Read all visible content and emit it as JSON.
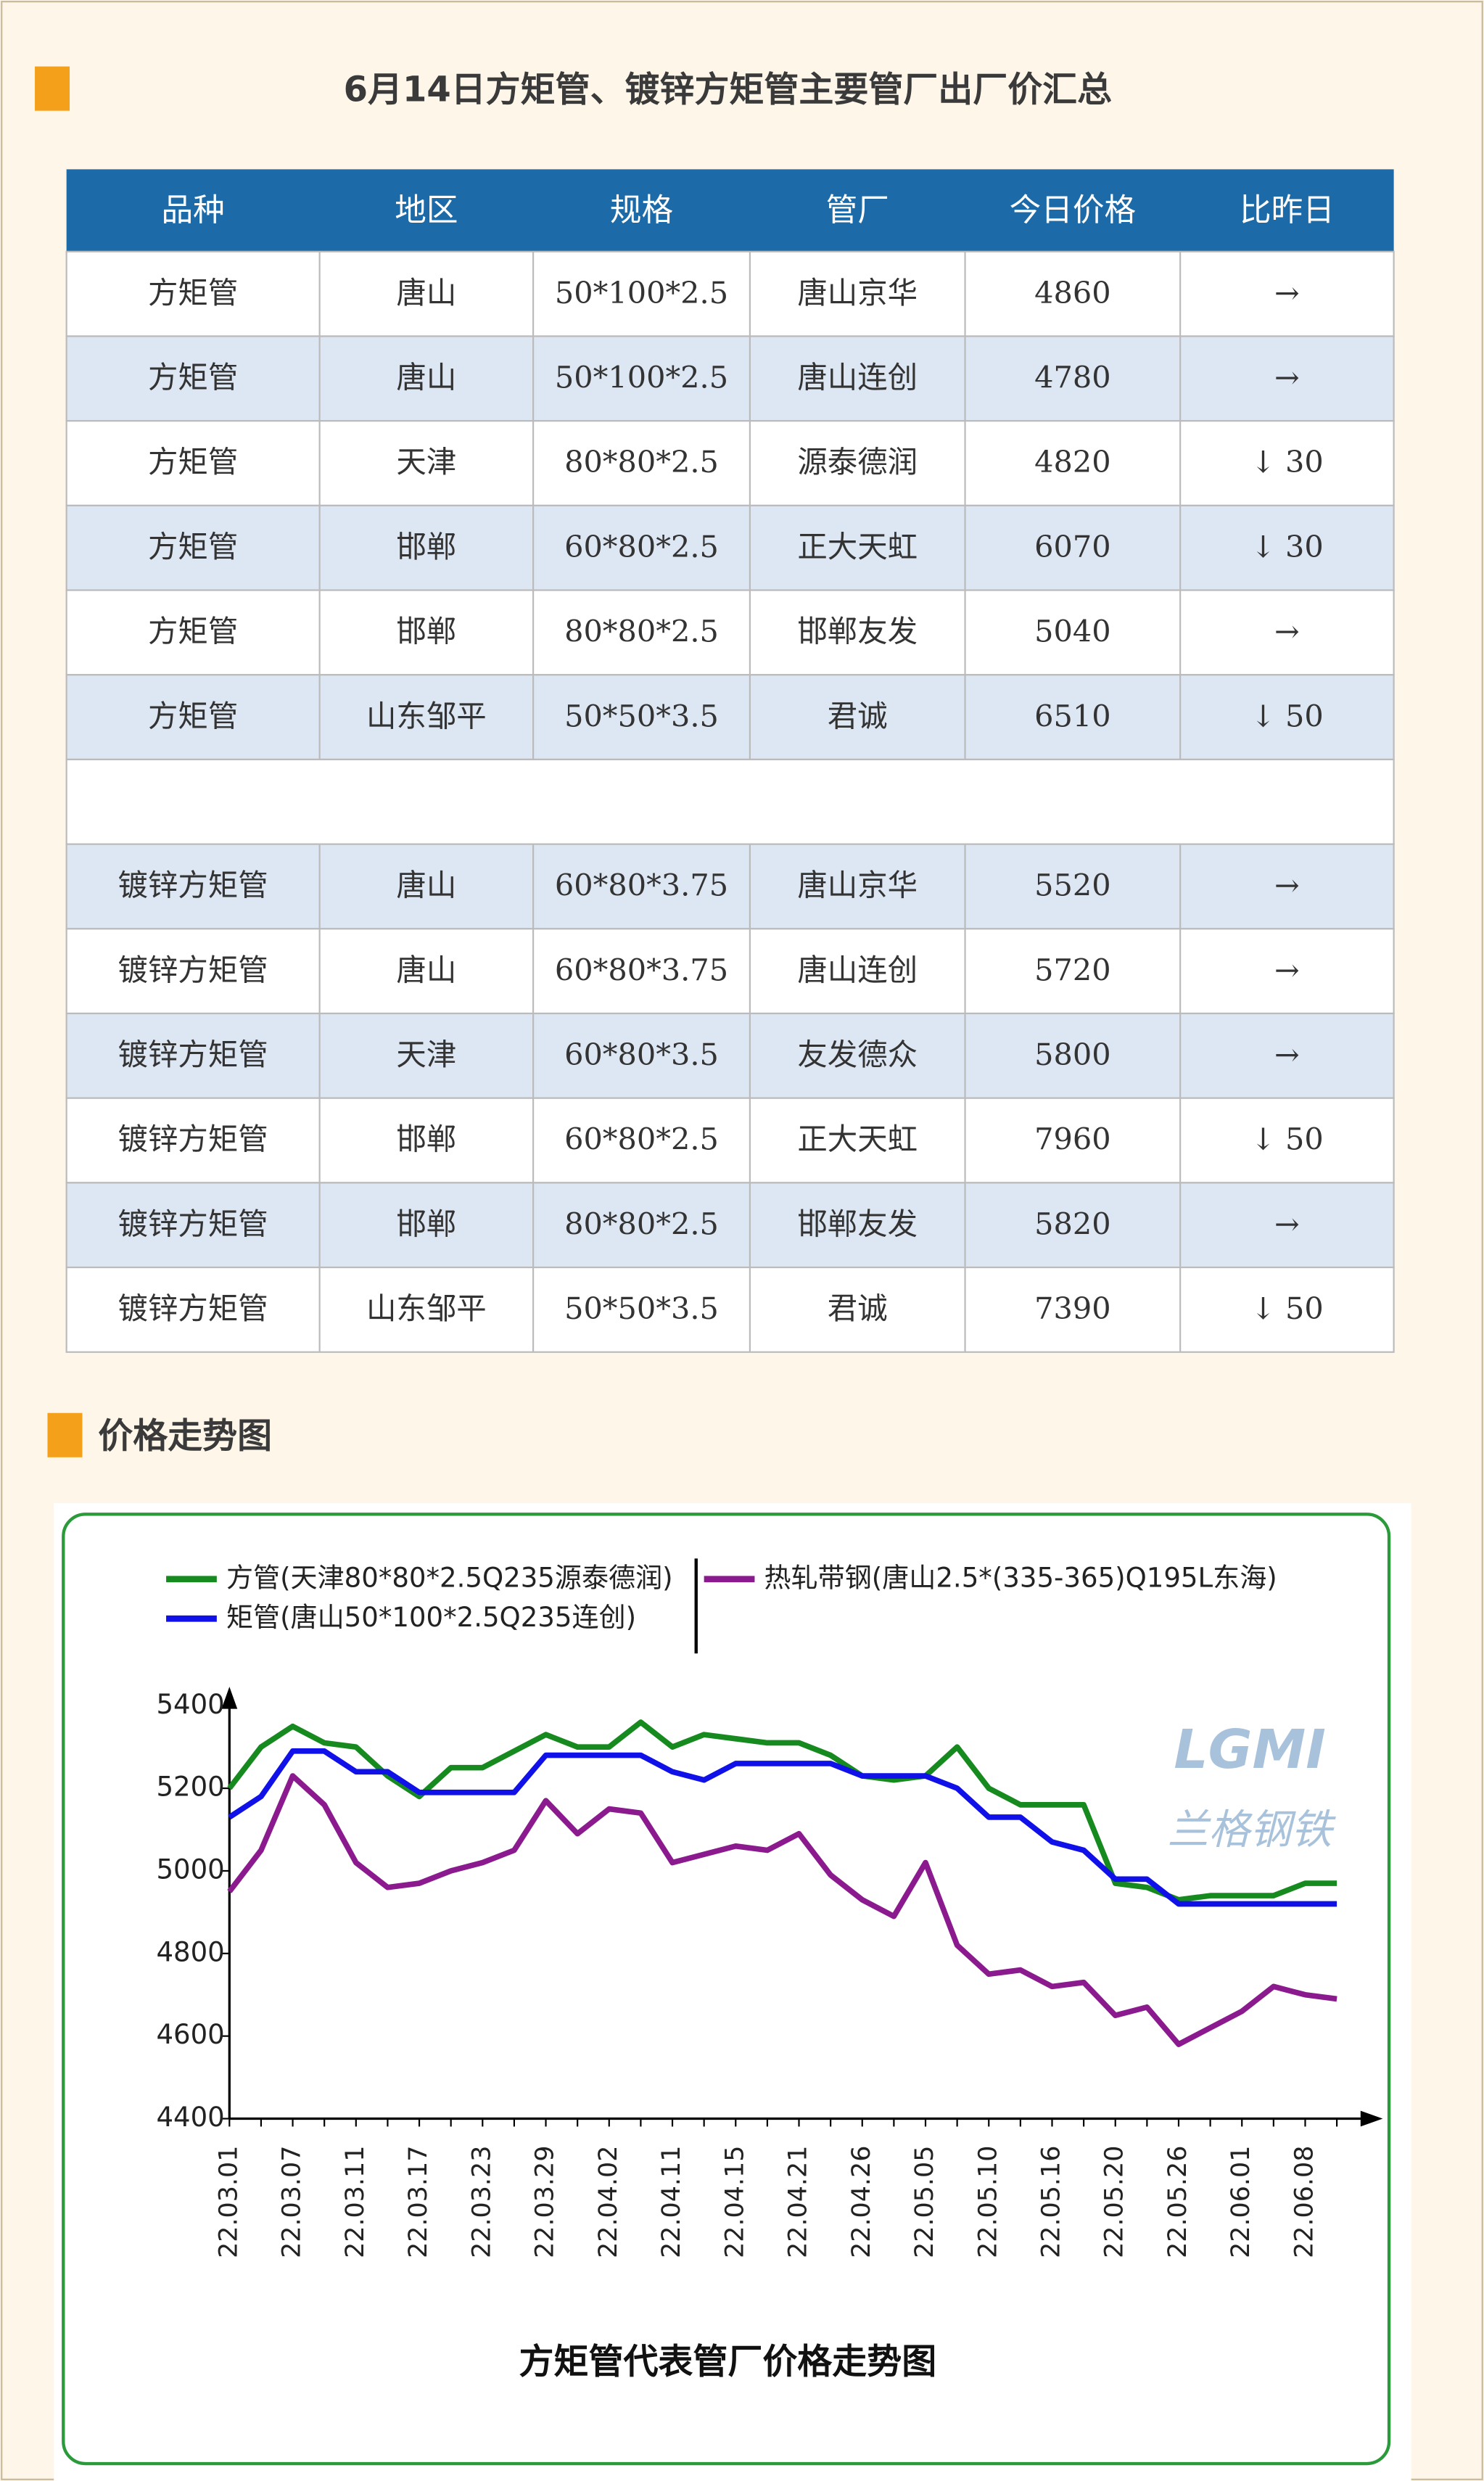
{
  "header": {
    "title": "6月14日方矩管、镀锌方矩管主要管厂出厂价汇总"
  },
  "table": {
    "columns": [
      "品种",
      "地区",
      "规格",
      "管厂",
      "今日价格",
      "比昨日"
    ],
    "groups": [
      {
        "rows": [
          [
            "方矩管",
            "唐山",
            "50*100*2.5",
            "唐山京华",
            "4860",
            "→"
          ],
          [
            "方矩管",
            "唐山",
            "50*100*2.5",
            "唐山连创",
            "4780",
            "→"
          ],
          [
            "方矩管",
            "天津",
            "80*80*2.5",
            "源泰德润",
            "4820",
            "↓ 30"
          ],
          [
            "方矩管",
            "邯郸",
            "60*80*2.5",
            "正大天虹",
            "6070",
            "↓ 30"
          ],
          [
            "方矩管",
            "邯郸",
            "80*80*2.5",
            "邯郸友发",
            "5040",
            "→"
          ],
          [
            "方矩管",
            "山东邹平",
            "50*50*3.5",
            "君诚",
            "6510",
            "↓ 50"
          ]
        ],
        "change_colors": [
          "#000000",
          "#000000",
          "#000000",
          "#1aa34a",
          "#1aa34a",
          "#1aa34a"
        ]
      },
      {
        "rows": [
          [
            "镀锌方矩管",
            "唐山",
            "60*80*3.75",
            "唐山京华",
            "5520",
            "→"
          ],
          [
            "镀锌方矩管",
            "唐山",
            "60*80*3.75",
            "唐山连创",
            "5720",
            "→"
          ],
          [
            "镀锌方矩管",
            "天津",
            "60*80*3.5",
            "友发德众",
            "5800",
            "→"
          ],
          [
            "镀锌方矩管",
            "邯郸",
            "60*80*2.5",
            "正大天虹",
            "7960",
            "↓ 50"
          ],
          [
            "镀锌方矩管",
            "邯郸",
            "80*80*2.5",
            "邯郸友发",
            "5820",
            "→"
          ],
          [
            "镀锌方矩管",
            "山东邹平",
            "50*50*3.5",
            "君诚",
            "7390",
            "↓ 50"
          ]
        ],
        "change_colors": [
          "#1aa34a",
          "#1aa34a",
          "#000000",
          "#1aa34a",
          "#000000",
          "#1aa34a"
        ]
      }
    ]
  },
  "section": {
    "title": "价格走势图"
  },
  "chart_data": {
    "type": "line",
    "title": "方矩管代表管厂价格走势图",
    "watermark": "LGMI",
    "watermark_sub": "兰格钢铁",
    "categories": [
      "22.03.01",
      null,
      "22.03.07",
      null,
      "22.03.11",
      null,
      "22.03.17",
      null,
      "22.03.23",
      null,
      "22.03.29",
      null,
      "22.04.02",
      null,
      "22.04.11",
      null,
      "22.04.15",
      null,
      "22.04.21",
      null,
      "22.04.26",
      null,
      "22.05.05",
      null,
      "22.05.10",
      null,
      "22.05.16",
      null,
      "22.05.20",
      null,
      "22.05.26",
      null,
      "22.06.01",
      null,
      "22.06.08",
      null
    ],
    "series": [
      {
        "name": "方管(天津80*80*2.5Q235源泰德润)",
        "color": "#168a1e",
        "values": [
          5200,
          5300,
          5350,
          5310,
          5300,
          5230,
          5180,
          5250,
          5250,
          5290,
          5330,
          5300,
          5300,
          5360,
          5300,
          5330,
          5320,
          5310,
          5310,
          5280,
          5230,
          5220,
          5230,
          5300,
          5200,
          5160,
          5160,
          5160,
          4970,
          4960,
          4930,
          4940,
          4940,
          4940,
          4970,
          4970
        ]
      },
      {
        "name": "矩管(唐山50*100*2.5Q235连创)",
        "color": "#1010e8",
        "values": [
          5130,
          5180,
          5290,
          5290,
          5240,
          5240,
          5190,
          5190,
          5190,
          5190,
          5280,
          5280,
          5280,
          5280,
          5240,
          5220,
          5260,
          5260,
          5260,
          5260,
          5230,
          5230,
          5230,
          5200,
          5130,
          5130,
          5070,
          5050,
          4980,
          4980,
          4920,
          4920,
          4920,
          4920,
          4920,
          4920
        ]
      },
      {
        "name": "热轧带钢(唐山2.5*(335-365)Q195L东海)",
        "color": "#8a1a8e",
        "values": [
          4950,
          5050,
          5230,
          5160,
          5020,
          4960,
          4970,
          5000,
          5020,
          5050,
          5170,
          5090,
          5150,
          5140,
          5020,
          5040,
          5060,
          5050,
          5090,
          4990,
          4930,
          4890,
          5020,
          4820,
          4750,
          4760,
          4720,
          4730,
          4650,
          4670,
          4580,
          4620,
          4660,
          4720,
          4700,
          4690
        ]
      }
    ],
    "ylim": [
      4400,
      5400
    ],
    "yticks": [
      4400,
      4600,
      4800,
      5000,
      5200,
      5400
    ]
  }
}
